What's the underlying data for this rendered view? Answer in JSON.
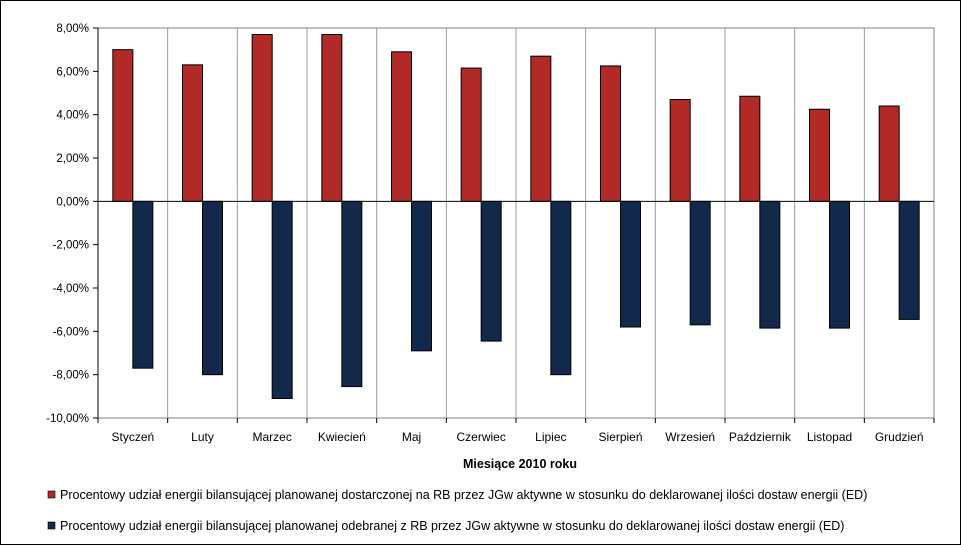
{
  "chart_data": {
    "type": "bar",
    "title": "",
    "xlabel": "Miesiące 2010 roku",
    "ylabel": "",
    "ylim": [
      -10,
      8
    ],
    "y_ticks": [
      8,
      6,
      4,
      2,
      0,
      -2,
      -4,
      -6,
      -8,
      -10
    ],
    "y_tick_labels": [
      "8,00%",
      "6,00%",
      "4,00%",
      "2,00%",
      "0,00%",
      "-2,00%",
      "-4,00%",
      "-6,00%",
      "-8,00%",
      "-10,00%"
    ],
    "grid": "vertical",
    "legend_placement": "bottom",
    "categories": [
      "Styczeń",
      "Luty",
      "Marzec",
      "Kwiecień",
      "Maj",
      "Czerwiec",
      "Lipiec",
      "Sierpień",
      "Wrzesień",
      "Październik",
      "Listopad",
      "Grudzień"
    ],
    "series": [
      {
        "name": "Procentowy udział energii bilansującej planowanej dostarczonej na RB przez JGw aktywne w stosunku do deklarowanej ilości dostaw energii (ED)",
        "color": "#b22a28",
        "values": [
          7.0,
          6.3,
          7.7,
          7.7,
          6.9,
          6.15,
          6.7,
          6.25,
          4.7,
          4.85,
          4.25,
          4.4
        ]
      },
      {
        "name": "Procentowy udział energii bilansującej planowanej odebranej z RB przez JGw aktywne w stosunku do deklarowanej ilości dostaw energii (ED)",
        "color": "#13294b",
        "values": [
          -7.7,
          -8.0,
          -9.1,
          -8.55,
          -6.9,
          -6.45,
          -8.0,
          -5.8,
          -5.7,
          -5.85,
          -5.85,
          -5.45
        ]
      }
    ]
  }
}
